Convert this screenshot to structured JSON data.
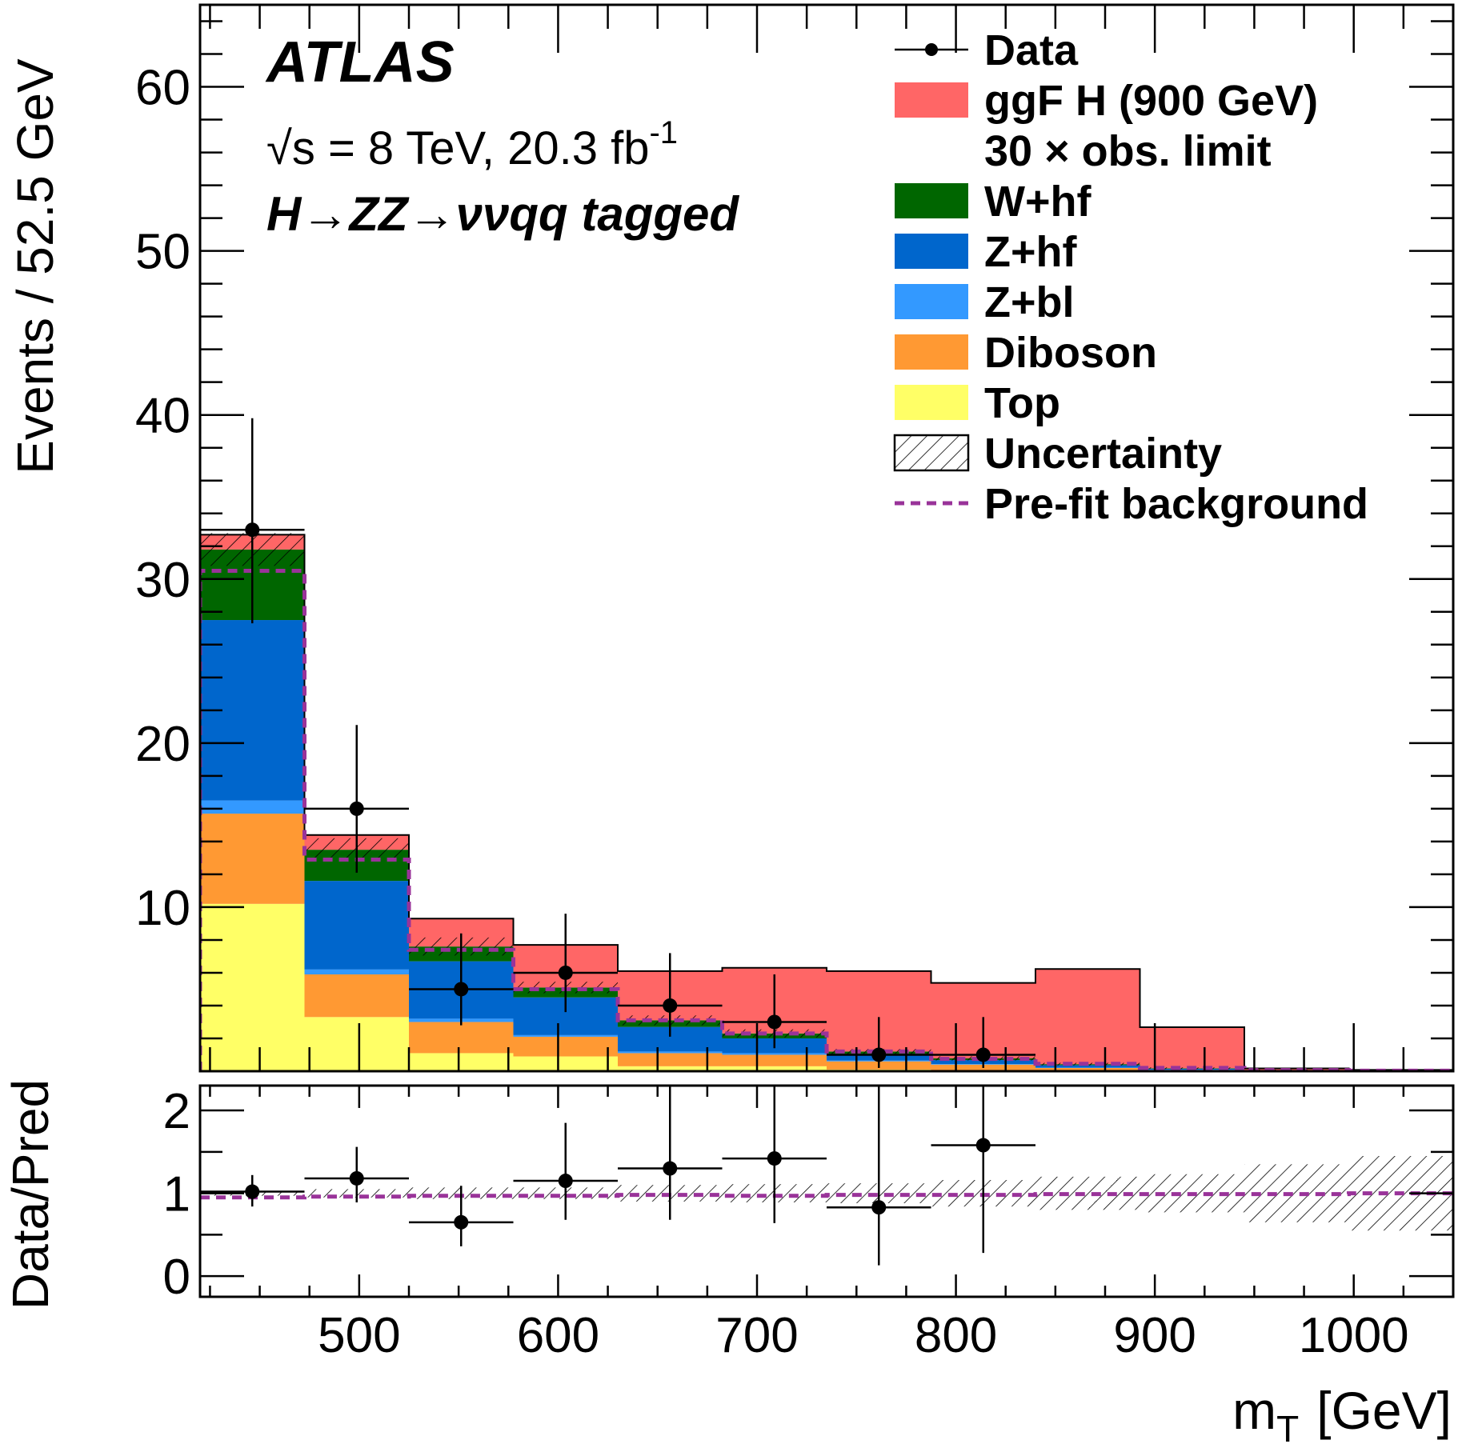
{
  "chart_data": {
    "type": "bar",
    "stacked": true,
    "annotations": {
      "experiment": "ATLAS",
      "energy_prefix": "√s = 8 TeV, 20.3 fb",
      "energy_sup": "-1",
      "channel": "H→ZZ→ννqq tagged"
    },
    "xlabel": "m",
    "xlabel_sub": "T",
    "xlabel_unit": "[GeV]",
    "ylabel": "Events / 52.5 GeV",
    "ratio_ylabel": "Data/Pred",
    "xlim": [
      420,
      1050
    ],
    "ylim": [
      0,
      65
    ],
    "ratio_ylim": [
      -0.25,
      2.3
    ],
    "x_ticks": [
      500,
      600,
      700,
      800,
      900,
      1000
    ],
    "x_tick_labels": [
      "500",
      "600",
      "700",
      "800",
      "900",
      "1000"
    ],
    "y_ticks": [
      10,
      20,
      30,
      40,
      50,
      60
    ],
    "y_tick_labels": [
      "10",
      "20",
      "30",
      "40",
      "50",
      "60"
    ],
    "ratio_y_ticks": [
      0,
      1,
      2
    ],
    "ratio_y_tick_labels": [
      "0",
      "1",
      "2"
    ],
    "bin_edges": [
      420,
      472.5,
      525,
      577.5,
      630,
      682.5,
      735,
      787.5,
      840,
      892.5,
      945,
      997.5,
      1050
    ],
    "legend": {
      "position": "top-right",
      "entries": [
        {
          "label": "Data",
          "style": "marker"
        },
        {
          "label": "ggF H (900 GeV)",
          "label2": "30 × obs. limit",
          "style": "fill",
          "color": "#ff6666"
        },
        {
          "label": "W+hf",
          "style": "fill",
          "color": "#006600"
        },
        {
          "label": "Z+hf",
          "style": "fill",
          "color": "#0066cc"
        },
        {
          "label": "Z+bl",
          "style": "fill",
          "color": "#3399ff"
        },
        {
          "label": "Diboson",
          "style": "fill",
          "color": "#ff9933"
        },
        {
          "label": "Top",
          "style": "fill",
          "color": "#ffff66"
        },
        {
          "label": "Uncertainty",
          "style": "hatch"
        },
        {
          "label": "Pre-fit background",
          "style": "dashed",
          "color": "#993399"
        }
      ]
    },
    "series": [
      {
        "key": "top",
        "color": "#ffff66",
        "values": [
          10.2,
          3.3,
          1.1,
          0.9,
          0.3,
          0.3,
          0.1,
          0.05,
          0.02,
          0,
          0,
          0
        ]
      },
      {
        "key": "diboson",
        "color": "#ff9933",
        "values": [
          5.5,
          2.6,
          1.9,
          1.2,
          0.8,
          0.7,
          0.5,
          0.35,
          0.18,
          0.08,
          0.03,
          0.01
        ]
      },
      {
        "key": "z_bl",
        "color": "#3399ff",
        "values": [
          0.8,
          0.3,
          0.2,
          0.1,
          0.1,
          0.1,
          0.05,
          0.03,
          0.02,
          0.01,
          0,
          0
        ]
      },
      {
        "key": "z_hf",
        "color": "#0066cc",
        "values": [
          11.0,
          5.4,
          3.5,
          2.3,
          1.5,
          0.9,
          0.4,
          0.25,
          0.15,
          0.06,
          0.03,
          0.01
        ]
      },
      {
        "key": "w_hf",
        "color": "#006600",
        "values": [
          4.3,
          1.9,
          0.9,
          0.6,
          0.4,
          0.3,
          0.15,
          0.1,
          0.06,
          0.03,
          0.01,
          0.01
        ]
      },
      {
        "key": "ggf",
        "color": "#ff6666",
        "values": [
          0.9,
          0.9,
          1.7,
          2.6,
          3.0,
          4.0,
          4.9,
          4.6,
          5.8,
          2.5,
          0.1,
          0.05
        ]
      }
    ],
    "uncertainty_half": [
      1.0,
      0.7,
      0.55,
      0.35,
      0.3,
      0.25,
      0.15,
      0.12,
      0.08,
      0.05,
      0.03,
      0.02
    ],
    "prefit_background": [
      30.5,
      12.9,
      7.4,
      5.0,
      3.1,
      2.3,
      1.2,
      0.75,
      0.45,
      0.2,
      0.07,
      0.03
    ],
    "data": {
      "x": [
        446.25,
        498.75,
        551.25,
        603.75,
        656.25,
        708.75,
        761.25,
        813.75
      ],
      "y": [
        33,
        16,
        5,
        6,
        4,
        3,
        1,
        1
      ],
      "err_up": [
        6.8,
        5.1,
        3.4,
        3.6,
        3.2,
        2.9,
        2.3,
        2.3
      ],
      "err_down": [
        5.7,
        3.9,
        2.2,
        2.4,
        1.9,
        1.6,
        0.8,
        0.8
      ]
    },
    "ratio": {
      "x": [
        446.25,
        498.75,
        551.25,
        603.75,
        656.25,
        708.75,
        761.25,
        813.75
      ],
      "y": [
        1.02,
        1.18,
        0.65,
        1.15,
        1.3,
        1.42,
        0.83,
        1.58
      ],
      "err_up": [
        0.2,
        0.38,
        0.44,
        0.7,
        1.03,
        1.8,
        2.2,
        3.0
      ],
      "err_down": [
        0.18,
        0.29,
        0.29,
        0.47,
        0.62,
        0.78,
        0.7,
        1.3
      ]
    },
    "ratio_uncertainty_half": [
      0.03,
      0.05,
      0.07,
      0.07,
      0.1,
      0.11,
      0.12,
      0.16,
      0.2,
      0.23,
      0.35,
      0.45
    ],
    "ratio_prefit": [
      0.95,
      0.96,
      0.97,
      0.97,
      0.98,
      0.97,
      0.98,
      0.98,
      0.99,
      0.99,
      0.99,
      1.0
    ]
  }
}
